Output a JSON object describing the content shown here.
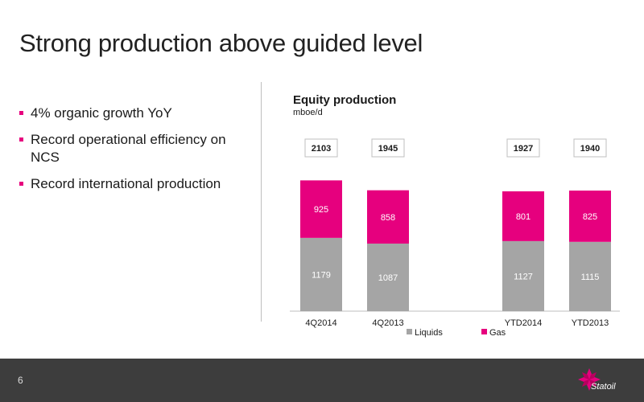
{
  "slide": {
    "title": "Strong production above guided level",
    "page_number": "6",
    "bullets": [
      "4% organic growth YoY",
      "Record operational efficiency on NCS",
      "Record international production"
    ],
    "logo_text": "Statoil"
  },
  "colors": {
    "liquids": "#a5a5a5",
    "gas": "#e6007e",
    "accent": "#e6007e",
    "footer": "#3d3d3d"
  },
  "chart_data": {
    "type": "bar",
    "stacked": true,
    "title": "Equity production",
    "ylabel": "mboe/d",
    "categories": [
      "4Q2014",
      "4Q2013",
      "YTD2014",
      "YTD2013"
    ],
    "series": [
      {
        "name": "Liquids",
        "values": [
          1179,
          1087,
          1127,
          1115
        ]
      },
      {
        "name": "Gas",
        "values": [
          925,
          858,
          801,
          825
        ]
      }
    ],
    "totals": [
      "2103",
      "1945",
      "1927",
      "1940"
    ],
    "ylim": [
      0,
      2200
    ],
    "legend": "bottom",
    "grid": false
  }
}
